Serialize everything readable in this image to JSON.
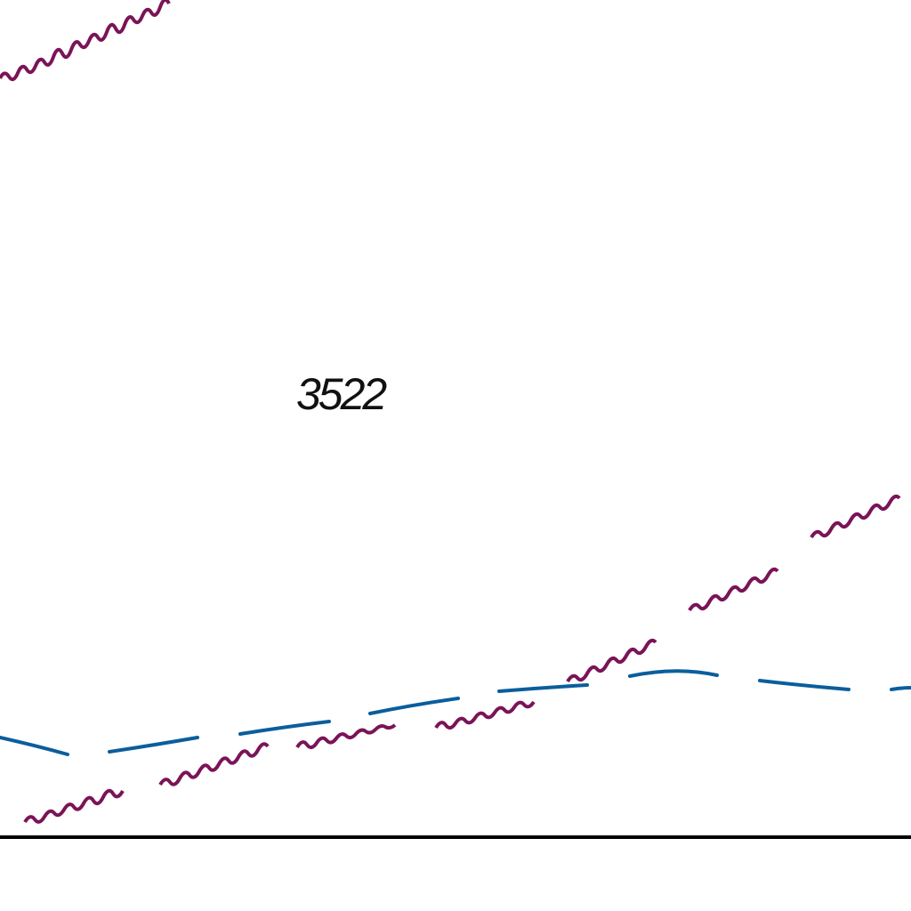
{
  "map": {
    "feature_label": "3522",
    "colors": {
      "background": "#ffffff",
      "wavy_line": "#7a1457",
      "dashed_line": "#0a5e9c",
      "baseline": "#000000",
      "label": "#111111"
    }
  }
}
